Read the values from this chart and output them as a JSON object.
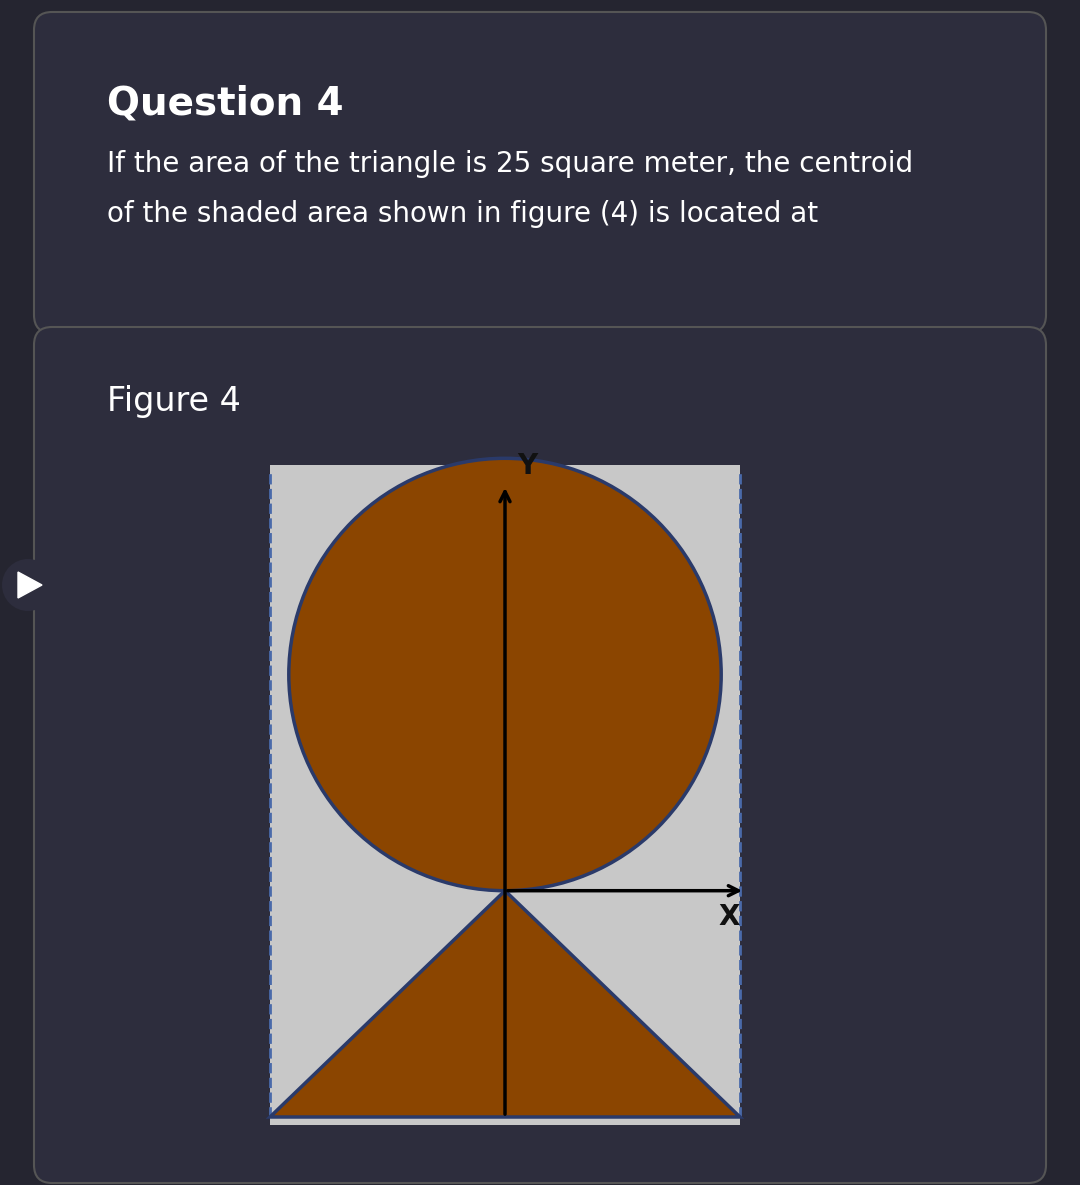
{
  "bg_outer": "#252530",
  "bg_card": "#2d2d3d",
  "bg_figure": "#c8c8c8",
  "shaded_color": "#8B4500",
  "outline_color": "#2a3a6a",
  "dashed_color": "#4a6aaa",
  "axis_color": "#000000",
  "text_color_white": "#ffffff",
  "text_color_dark": "#111111",
  "title_text": "Question 4",
  "body_text_line1": "If the area of the triangle is 25 square meter, the centroid",
  "body_text_line2": "of the shaded area shown in figure (4) is located at",
  "figure_label": "Figure 4",
  "x_label": "X",
  "y_label": "Y"
}
